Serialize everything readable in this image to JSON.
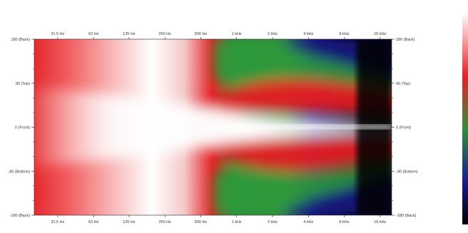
{
  "chart_data": {
    "type": "heatmap",
    "title": "",
    "xlabel": "",
    "ylabel": "",
    "x_scale": "log",
    "x_unit": "Hz",
    "x_ticks": [
      {
        "value": 31.5,
        "label": "31,5 Hz"
      },
      {
        "value": 63,
        "label": "63 Hz"
      },
      {
        "value": 125,
        "label": "125 Hz"
      },
      {
        "value": 250,
        "label": "250 Hz"
      },
      {
        "value": 500,
        "label": "500 Hz"
      },
      {
        "value": 1000,
        "label": "1 kHz"
      },
      {
        "value": 2000,
        "label": "2 kHz"
      },
      {
        "value": 4000,
        "label": "4 kHz"
      },
      {
        "value": 8000,
        "label": "8 kHz"
      },
      {
        "value": 16000,
        "label": "16 kHz"
      }
    ],
    "x_range": [
      20,
      20000
    ],
    "y_unit": "degrees",
    "y_ticks": [
      {
        "value": 180,
        "label": "180 (Back)"
      },
      {
        "value": 90,
        "label": "90 (Top)"
      },
      {
        "value": 0,
        "label": "0 (Front)"
      },
      {
        "value": -90,
        "label": "-90 (Bottom)"
      },
      {
        "value": -180,
        "label": "-180 (Back)"
      }
    ],
    "y_range": [
      -180,
      180
    ],
    "colorscale": [
      "#000000",
      "#1a1a8c",
      "#2f8f3a",
      "#e81e24",
      "#ffffff"
    ],
    "colorbar_position": "right",
    "grid": false
  }
}
